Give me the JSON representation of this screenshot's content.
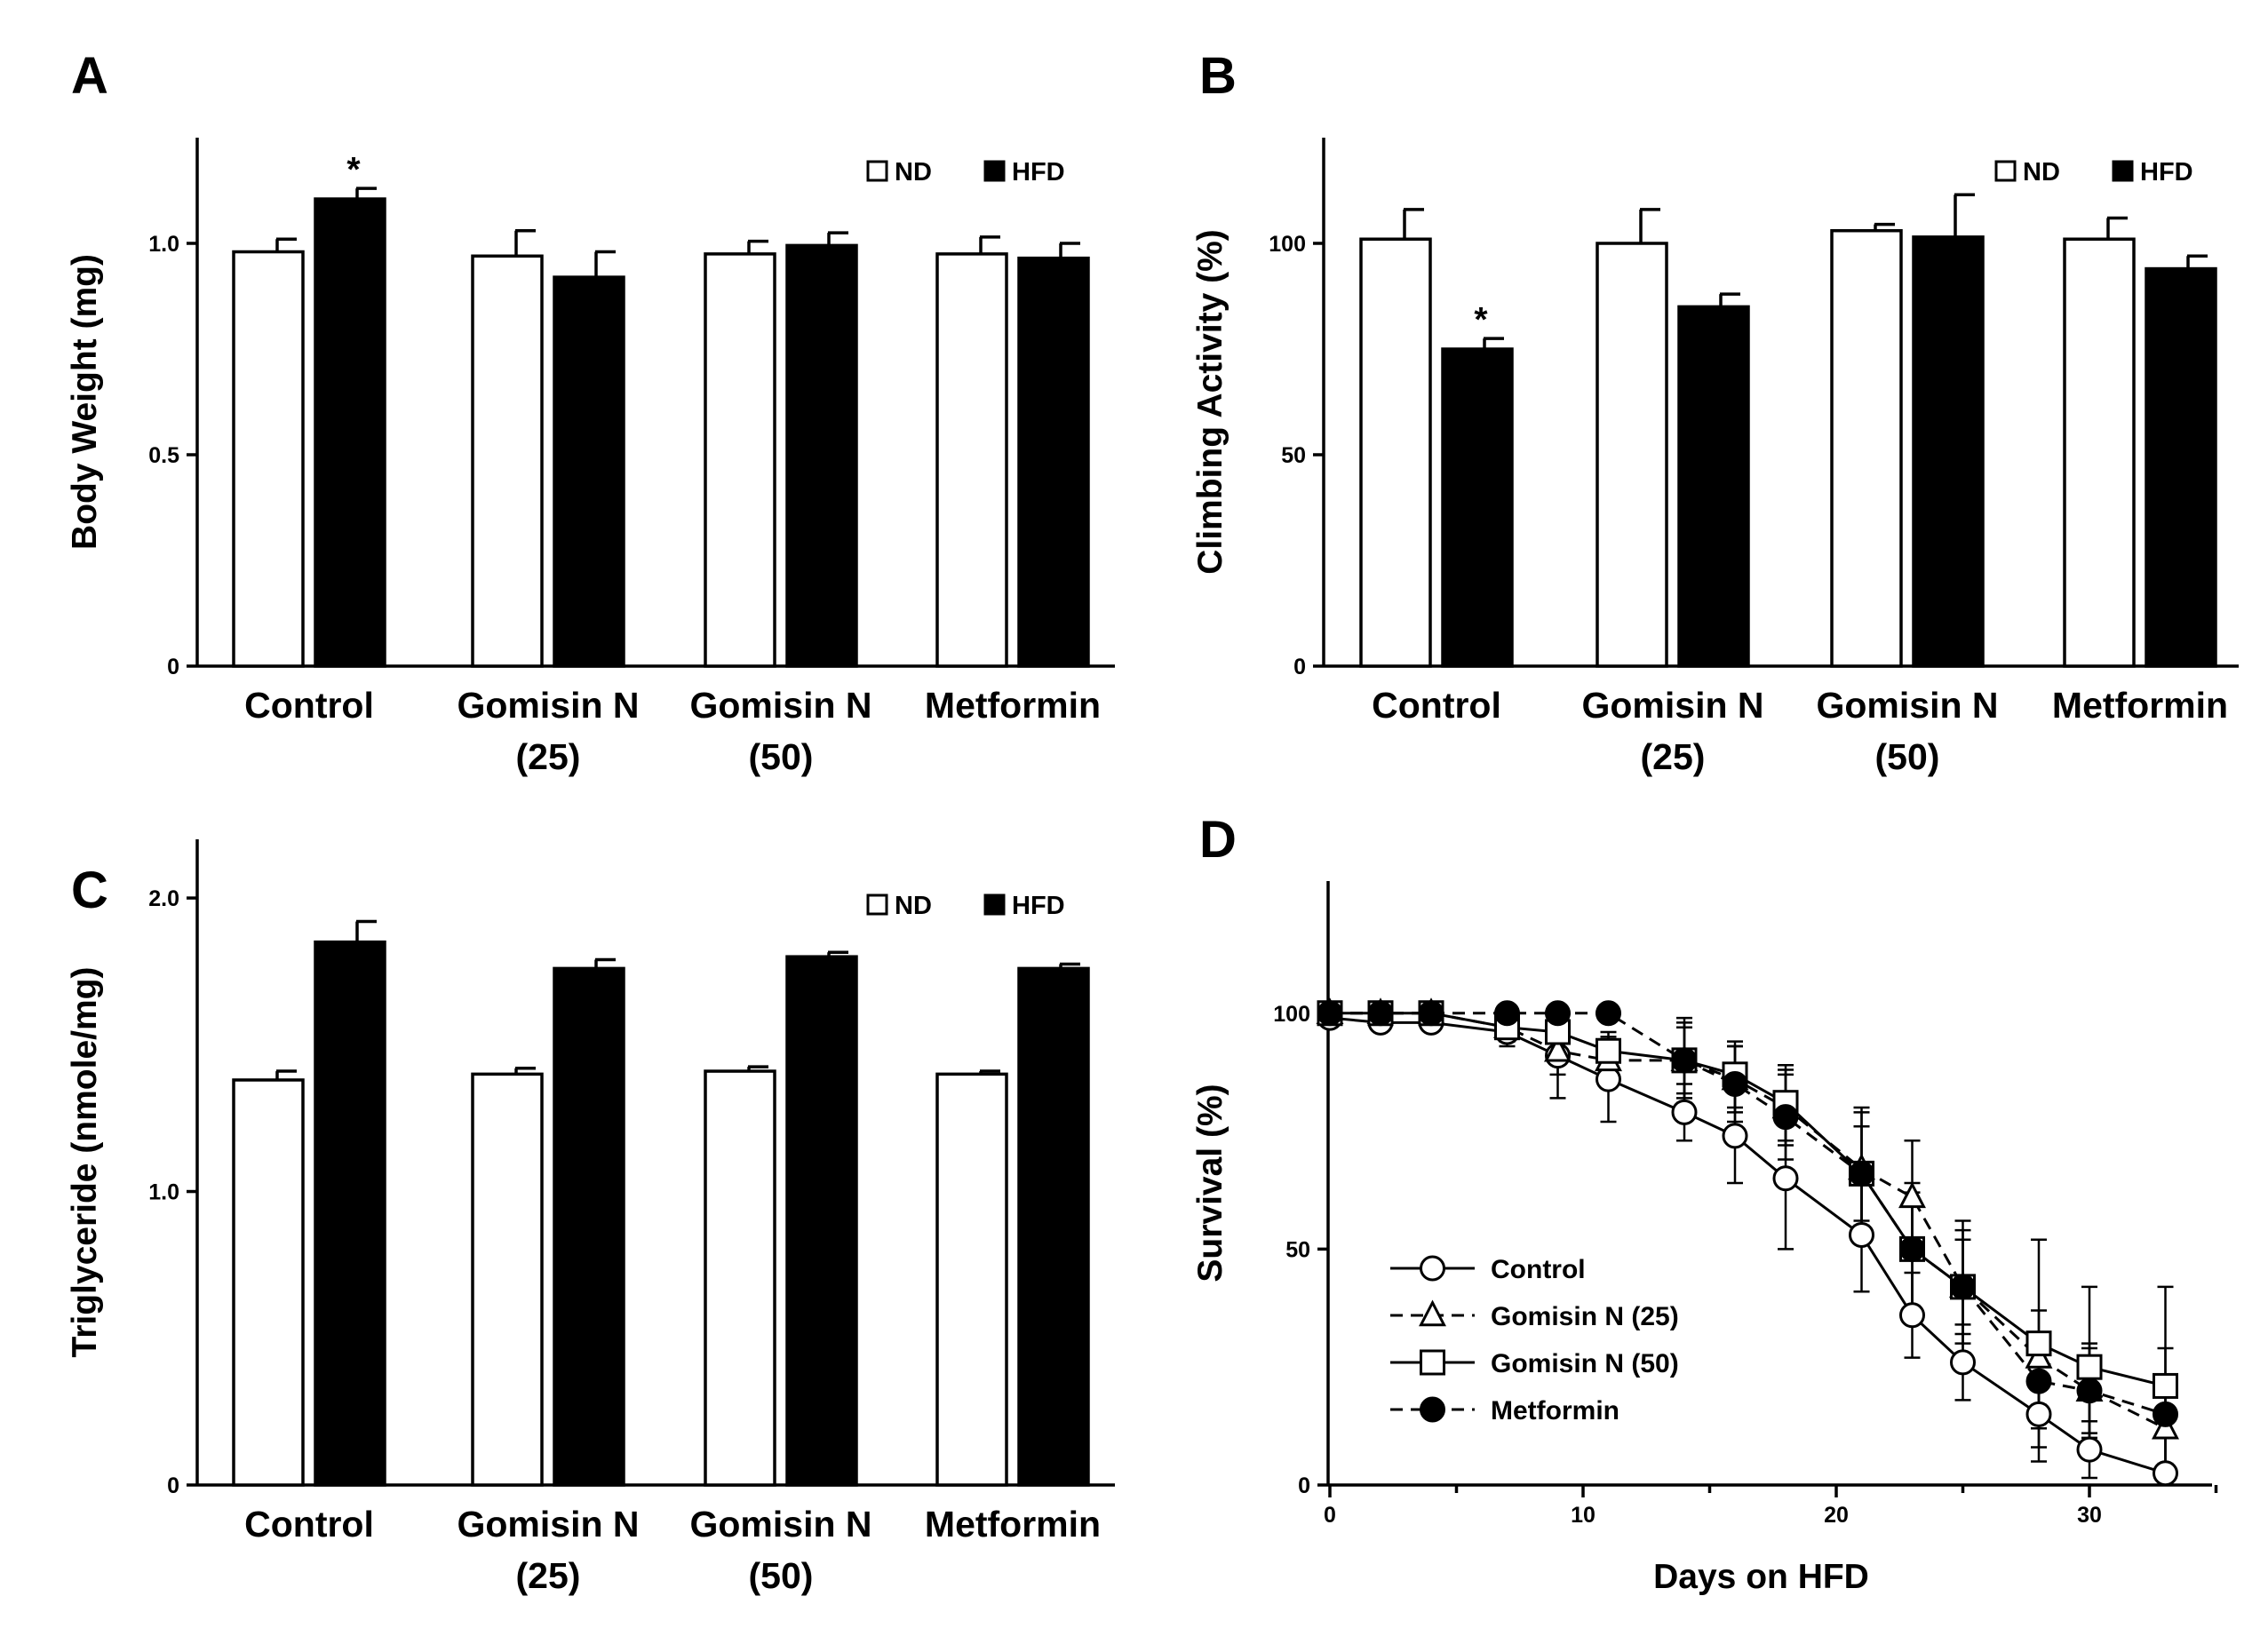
{
  "figure": {
    "panels": [
      "A",
      "B",
      "C",
      "D"
    ]
  },
  "chart_data": [
    {
      "id": "A",
      "type": "bar",
      "title": "",
      "ylabel": "Body Weight (mg)",
      "xlabel": "",
      "ylim": [
        0,
        1.25
      ],
      "yticks": [
        0,
        0.5,
        1.0
      ],
      "ytick_labels": [
        "0",
        "0.5",
        "1.0"
      ],
      "categories": [
        [
          "Control"
        ],
        [
          "Gomisin N",
          "(25)"
        ],
        [
          "Gomisin N",
          "(50)"
        ],
        [
          "Metformin"
        ]
      ],
      "series": [
        {
          "name": "ND",
          "values": [
            0.98,
            0.97,
            0.975,
            0.975
          ],
          "errors": [
            0.03,
            0.06,
            0.03,
            0.04
          ]
        },
        {
          "name": "HFD",
          "values": [
            1.105,
            0.92,
            0.995,
            0.965
          ],
          "errors": [
            0.025,
            0.06,
            0.03,
            0.035
          ]
        }
      ],
      "annotations": [
        {
          "series": 1,
          "index": 0,
          "text": "*"
        }
      ],
      "legend": "top-right"
    },
    {
      "id": "B",
      "type": "bar",
      "title": "",
      "ylabel": "Climbing Activity (%)",
      "xlabel": "",
      "ylim": [
        0,
        125
      ],
      "yticks": [
        0,
        50,
        100
      ],
      "ytick_labels": [
        "0",
        "50",
        "100"
      ],
      "categories": [
        [
          "Control"
        ],
        [
          "Gomisin N",
          "(25)"
        ],
        [
          "Gomisin N",
          "(50)"
        ],
        [
          "Metformin"
        ]
      ],
      "series": [
        {
          "name": "ND",
          "values": [
            101,
            100,
            103,
            101
          ],
          "errors": [
            7,
            8,
            1.5,
            5
          ]
        },
        {
          "name": "HFD",
          "values": [
            75,
            85,
            101.5,
            94
          ],
          "errors": [
            2.5,
            3,
            10,
            3
          ]
        }
      ],
      "annotations": [
        {
          "series": 1,
          "index": 0,
          "text": "*"
        }
      ],
      "legend": "top-right"
    },
    {
      "id": "C",
      "type": "bar",
      "title": "",
      "ylabel": "Triglyceride (nmole/mg)",
      "xlabel": "",
      "ylim": [
        0,
        2.2
      ],
      "yticks": [
        0,
        1.0,
        2.0
      ],
      "ytick_labels": [
        "0",
        "1.0",
        "2.0"
      ],
      "categories": [
        [
          "Control"
        ],
        [
          "Gomisin N",
          "(25)"
        ],
        [
          "Gomisin N",
          "(50)"
        ],
        [
          "Metformin"
        ]
      ],
      "series": [
        {
          "name": "ND",
          "values": [
            1.38,
            1.4,
            1.41,
            1.4
          ],
          "errors": [
            0.03,
            0.02,
            0.015,
            0.01
          ]
        },
        {
          "name": "HFD",
          "values": [
            1.85,
            1.76,
            1.8,
            1.76
          ],
          "errors": [
            0.07,
            0.03,
            0.015,
            0.015
          ]
        }
      ],
      "annotations": [],
      "legend": "top-right"
    },
    {
      "id": "D",
      "type": "line",
      "title": "",
      "ylabel": "Survival (%)",
      "xlabel": "Days on HFD",
      "xlim": [
        0,
        35
      ],
      "ylim": [
        0,
        128
      ],
      "xticks": [
        0,
        10,
        20,
        30
      ],
      "xtick_labels": [
        "0",
        "10",
        "20",
        "30"
      ],
      "yticks": [
        0,
        50,
        100
      ],
      "ytick_labels": [
        "0",
        "50",
        "100"
      ],
      "x": [
        0,
        2,
        4,
        7,
        9,
        11,
        14,
        16,
        18,
        21,
        23,
        25,
        28,
        30,
        33
      ],
      "series": [
        {
          "name": "Control",
          "dash": "solid",
          "marker": "open-circle",
          "values": [
            99,
            98,
            98,
            96,
            91,
            86,
            79,
            74,
            65,
            53,
            36,
            26,
            15,
            7.5,
            2.5
          ],
          "errors": [
            1,
            1,
            1.5,
            3,
            9,
            9,
            6,
            10,
            15,
            12,
            9,
            8,
            10,
            6,
            2
          ]
        },
        {
          "name": "Gomisin N (25)",
          "dash": "dashed",
          "marker": "open-triangle",
          "values": [
            100,
            100,
            100,
            97,
            92,
            90,
            90,
            86,
            80,
            67,
            61,
            42,
            27,
            20,
            12
          ],
          "errors": [
            0.5,
            0.5,
            0.5,
            3,
            5,
            4,
            9,
            7,
            8,
            12,
            12,
            12,
            10,
            10,
            8
          ]
        },
        {
          "name": "Gomisin N (50)",
          "dash": "solid",
          "marker": "open-square",
          "values": [
            100,
            100,
            100,
            97,
            96,
            92,
            90,
            87,
            81,
            66,
            50,
            42,
            30,
            25,
            21
          ],
          "errors": [
            0.5,
            0.5,
            0.5,
            3,
            4,
            4,
            7,
            7,
            8,
            14,
            14,
            14,
            22,
            17,
            21
          ]
        },
        {
          "name": "Metformin",
          "dash": "dashed",
          "marker": "filled-circle",
          "values": [
            100,
            100,
            100,
            100,
            100,
            100,
            90,
            85,
            78,
            66,
            50,
            42,
            22,
            20,
            15
          ],
          "errors": [
            0.5,
            0.5,
            0.5,
            0.5,
            0.5,
            0.5,
            8,
            8,
            9,
            10,
            12,
            10,
            10,
            9,
            14
          ]
        }
      ],
      "legend": "bottom-left"
    }
  ]
}
